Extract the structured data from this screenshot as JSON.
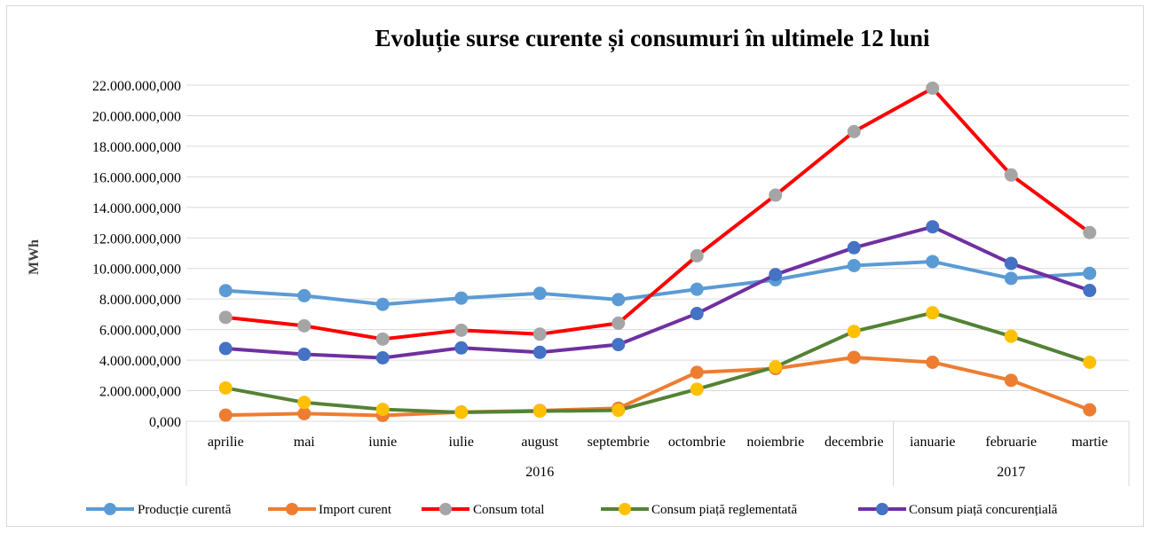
{
  "chart_data": {
    "type": "line",
    "title": "Evoluție surse curente și consumuri în ultimele 12 luni",
    "ylabel": "MWh",
    "xlabel": "",
    "categories": [
      "aprilie",
      "mai",
      "iunie",
      "iulie",
      "august",
      "septembrie",
      "octombrie",
      "noiembrie",
      "decembrie",
      "ianuarie",
      "februarie",
      "martie"
    ],
    "year_groups": [
      {
        "label": "2016",
        "count": 9
      },
      {
        "label": "2017",
        "count": 3
      }
    ],
    "y_ticks": [
      "0,000",
      "2.000.000,000",
      "4.000.000,000",
      "6.000.000,000",
      "8.000.000,000",
      "10.000.000,000",
      "12.000.000,000",
      "14.000.000,000",
      "16.000.000,000",
      "18.000.000,000",
      "20.000.000,000",
      "22.000.000,000"
    ],
    "ylim": [
      0,
      22000000
    ],
    "grid": true,
    "legend_position": "bottom",
    "series": [
      {
        "name": "Producție curentă",
        "color": "#5b9bd5",
        "marker_color": "#5b9bd5",
        "values": [
          8550000,
          8220000,
          7650000,
          8060000,
          8370000,
          7960000,
          8640000,
          9260000,
          10190000,
          10450000,
          9350000,
          9680000
        ]
      },
      {
        "name": "Import curent",
        "color": "#ed7d31",
        "marker_color": "#ed7d31",
        "values": [
          400000,
          500000,
          380000,
          600000,
          700000,
          850000,
          3200000,
          3450000,
          4180000,
          3860000,
          2680000,
          750000
        ]
      },
      {
        "name": "Consum total",
        "color": "#ff0000",
        "marker_color": "#a5a5a5",
        "values": [
          6800000,
          6250000,
          5380000,
          5960000,
          5700000,
          6420000,
          10830000,
          14800000,
          18960000,
          21800000,
          16120000,
          12350000
        ]
      },
      {
        "name": "Consum piață reglementată",
        "color": "#548235",
        "marker_color": "#ffc000",
        "values": [
          2180000,
          1230000,
          780000,
          580000,
          660000,
          720000,
          2100000,
          3560000,
          5880000,
          7100000,
          5560000,
          3860000
        ]
      },
      {
        "name": "Consum piață concurențială",
        "color": "#7030a0",
        "marker_color": "#4472c4",
        "values": [
          4760000,
          4380000,
          4150000,
          4800000,
          4510000,
          5020000,
          7050000,
          9600000,
          11360000,
          12730000,
          10330000,
          8560000
        ]
      }
    ]
  }
}
